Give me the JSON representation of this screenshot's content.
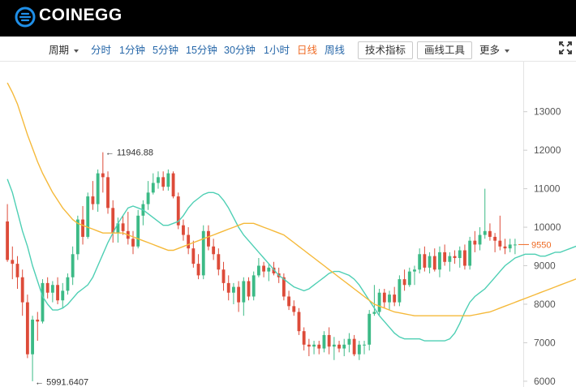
{
  "brand": {
    "name": "COINEGG",
    "logo_icon": "coinegg-logo-icon",
    "color": "#1f8fe8"
  },
  "toolbar": {
    "period_label": "周期",
    "intervals": [
      "分时",
      "1分钟",
      "5分钟",
      "15分钟",
      "30分钟",
      "1小时",
      "日线",
      "周线"
    ],
    "active_interval": "日线",
    "indicators_label": "技术指标",
    "drawing_tools_label": "画线工具",
    "more_label": "更多",
    "fullscreen_icon": "fullscreen-icon"
  },
  "colors": {
    "up": "#3cba86",
    "down": "#dd4b39",
    "ma_short": "#4ecfb4",
    "ma_long": "#f5b93a",
    "price_tag": "#ef6a23",
    "link": "#2566a8"
  },
  "chart_data": {
    "type": "candlestick",
    "ylim": [
      5850,
      14300
    ],
    "yticks": [
      6000,
      7000,
      8000,
      9000,
      10000,
      11000,
      12000,
      13000
    ],
    "annotations": [
      {
        "text": "← 11946.88",
        "value": 11946.88
      },
      {
        "text": "← 5991.6407",
        "value": 5991.6407
      }
    ],
    "last_price_label": "9550",
    "last_price": 9550,
    "series": [
      {
        "name": "",
        "color": "#4ecfb4",
        "values": [
          11250,
          10900,
          10400,
          9900,
          9500,
          9000,
          8600,
          8200,
          8000,
          7850,
          7850,
          7900,
          8000,
          8150,
          8300,
          8400,
          8500,
          8700,
          9000,
          9300,
          9600,
          9850,
          10100,
          10300,
          10500,
          10550,
          10500,
          10450,
          10350,
          10250,
          10150,
          10050,
          10050,
          10100,
          10150,
          10300,
          10500,
          10650,
          10750,
          10850,
          10900,
          10900,
          10850,
          10700,
          10500,
          10250,
          10000,
          9800,
          9650,
          9500,
          9350,
          9200,
          9050,
          8900,
          8750,
          8650,
          8550,
          8450,
          8400,
          8350,
          8400,
          8500,
          8600,
          8700,
          8800,
          8850,
          8850,
          8800,
          8750,
          8650,
          8500,
          8300,
          8100,
          7900,
          7700,
          7550,
          7400,
          7250,
          7150,
          7100,
          7100,
          7100,
          7100,
          7050,
          7050,
          7050,
          7050,
          7050,
          7100,
          7250,
          7500,
          7800,
          8050,
          8200,
          8300,
          8400,
          8550,
          8700,
          8850,
          9000,
          9100,
          9200,
          9250,
          9300,
          9300,
          9300,
          9250,
          9250,
          9300,
          9350,
          9350,
          9400,
          9450,
          9500,
          9550,
          9650,
          9700,
          9700,
          9650,
          9600
        ]
      },
      {
        "name": "",
        "color": "#f5b93a",
        "values": [
          13750,
          13500,
          13200,
          12800,
          12400,
          12050,
          11700,
          11400,
          11150,
          10900,
          10700,
          10500,
          10350,
          10200,
          10100,
          10050,
          10000,
          9950,
          9900,
          9850,
          9850,
          9850,
          9850,
          9850,
          9800,
          9750,
          9700,
          9650,
          9600,
          9550,
          9500,
          9450,
          9400,
          9400,
          9450,
          9500,
          9550,
          9600,
          9650,
          9700,
          9750,
          9800,
          9850,
          9900,
          9950,
          10000,
          10050,
          10100,
          10100,
          10100,
          10050,
          10000,
          9950,
          9900,
          9850,
          9800,
          9700,
          9600,
          9500,
          9400,
          9300,
          9200,
          9100,
          9000,
          8900,
          8800,
          8700,
          8600,
          8500,
          8400,
          8300,
          8200,
          8100,
          8000,
          7950,
          7900,
          7850,
          7800,
          7775,
          7750,
          7725,
          7700,
          7700,
          7700,
          7700,
          7700,
          7700,
          7700,
          7700,
          7700,
          7700,
          7700,
          7700,
          7725,
          7750,
          7775,
          7800,
          7850,
          7900,
          7950,
          8000,
          8050,
          8100,
          8150,
          8200,
          8250,
          8300,
          8350,
          8400,
          8450,
          8500,
          8550,
          8600,
          8650,
          8700,
          8750,
          8800,
          8850,
          8900,
          9000
        ]
      }
    ],
    "candles": [
      [
        10150,
        10600,
        9100,
        9150
      ],
      [
        9150,
        9500,
        8650,
        9050
      ],
      [
        9050,
        9250,
        8400,
        8700
      ],
      [
        8700,
        8900,
        7700,
        8050
      ],
      [
        8050,
        8250,
        6600,
        6700
      ],
      [
        6700,
        7700,
        6000,
        7600
      ],
      [
        7600,
        7800,
        7050,
        7550
      ],
      [
        7550,
        8650,
        7500,
        8550
      ],
      [
        8550,
        8700,
        8150,
        8300
      ],
      [
        8300,
        8600,
        8050,
        8500
      ],
      [
        8500,
        8700,
        8000,
        8100
      ],
      [
        8100,
        8550,
        7900,
        8350
      ],
      [
        8350,
        8800,
        8250,
        8700
      ],
      [
        8700,
        9500,
        8500,
        9300
      ],
      [
        9300,
        10300,
        9150,
        10200
      ],
      [
        10200,
        10550,
        9550,
        9750
      ],
      [
        9750,
        10900,
        9700,
        10800
      ],
      [
        10800,
        11200,
        10450,
        10600
      ],
      [
        10600,
        11500,
        10400,
        11400
      ],
      [
        11400,
        11946.88,
        10900,
        11300
      ],
      [
        11300,
        11450,
        10350,
        10500
      ],
      [
        10500,
        10700,
        9600,
        9850
      ],
      [
        9850,
        10250,
        9600,
        10100
      ],
      [
        10100,
        10300,
        9800,
        9900
      ],
      [
        9900,
        10400,
        9550,
        9700
      ],
      [
        9700,
        9900,
        9300,
        9500
      ],
      [
        9500,
        10450,
        9450,
        10300
      ],
      [
        10300,
        10700,
        10050,
        10600
      ],
      [
        10600,
        11200,
        10450,
        10900
      ],
      [
        10900,
        11400,
        10850,
        11150
      ],
      [
        11150,
        11450,
        11000,
        11300
      ],
      [
        11300,
        11450,
        10950,
        11050
      ],
      [
        11050,
        11500,
        10950,
        11400
      ],
      [
        11400,
        11450,
        10750,
        10800
      ],
      [
        10800,
        10900,
        9950,
        10050
      ],
      [
        10050,
        10200,
        9650,
        9800
      ],
      [
        9800,
        10000,
        9300,
        9450
      ],
      [
        9450,
        9650,
        8950,
        9050
      ],
      [
        9050,
        9300,
        8650,
        8750
      ],
      [
        8750,
        10050,
        8650,
        9900
      ],
      [
        9900,
        10050,
        9400,
        9500
      ],
      [
        9500,
        9700,
        9150,
        9300
      ],
      [
        9300,
        9450,
        8750,
        8900
      ],
      [
        8900,
        9100,
        8350,
        8550
      ],
      [
        8550,
        8750,
        8100,
        8300
      ],
      [
        8300,
        8550,
        8000,
        8450
      ],
      [
        8450,
        8600,
        7800,
        8050
      ],
      [
        8050,
        8700,
        7700,
        8600
      ],
      [
        8600,
        8700,
        8100,
        8200
      ],
      [
        8200,
        8850,
        8100,
        8750
      ],
      [
        8750,
        9200,
        8700,
        9000
      ],
      [
        9000,
        9100,
        8700,
        8850
      ],
      [
        8850,
        9050,
        8600,
        8950
      ],
      [
        8950,
        9100,
        8750,
        8800
      ],
      [
        8800,
        8950,
        8550,
        8700
      ],
      [
        8700,
        8800,
        8100,
        8200
      ],
      [
        8200,
        8350,
        7850,
        7950
      ],
      [
        7950,
        8100,
        7700,
        7800
      ],
      [
        7800,
        7900,
        7200,
        7300
      ],
      [
        7300,
        7400,
        6800,
        6950
      ],
      [
        6950,
        7100,
        6650,
        6900
      ],
      [
        6900,
        7050,
        6700,
        6950
      ],
      [
        6950,
        7050,
        6700,
        6850
      ],
      [
        6850,
        7300,
        6750,
        7200
      ],
      [
        7200,
        7400,
        6700,
        6900
      ],
      [
        6900,
        7150,
        6550,
        6950
      ],
      [
        6950,
        7050,
        6750,
        6850
      ],
      [
        6850,
        7100,
        6650,
        6950
      ],
      [
        6950,
        7250,
        6750,
        7100
      ],
      [
        7100,
        7200,
        6650,
        6700
      ],
      [
        6700,
        7050,
        6550,
        6950
      ],
      [
        6950,
        7050,
        6700,
        6950
      ],
      [
        6950,
        7850,
        6800,
        7750
      ],
      [
        7750,
        8500,
        7700,
        7800
      ],
      [
        7800,
        8400,
        7700,
        8300
      ],
      [
        8300,
        8400,
        7900,
        8050
      ],
      [
        8050,
        8350,
        7850,
        8250
      ],
      [
        8250,
        8450,
        7950,
        8050
      ],
      [
        8050,
        8750,
        7950,
        8650
      ],
      [
        8650,
        8900,
        8350,
        8500
      ],
      [
        8500,
        8950,
        8450,
        8850
      ],
      [
        8850,
        9000,
        8500,
        8900
      ],
      [
        8900,
        9450,
        8800,
        9300
      ],
      [
        9300,
        9500,
        8850,
        8950
      ],
      [
        8950,
        9350,
        8800,
        9250
      ],
      [
        9250,
        9450,
        8850,
        8900
      ],
      [
        8900,
        9500,
        8700,
        9350
      ],
      [
        9350,
        9550,
        9000,
        9100
      ],
      [
        9100,
        9350,
        8850,
        9250
      ],
      [
        9250,
        9400,
        9050,
        9200
      ],
      [
        9200,
        9500,
        8950,
        9400
      ],
      [
        9400,
        9550,
        8900,
        9000
      ],
      [
        9000,
        9750,
        8900,
        9650
      ],
      [
        9650,
        9900,
        9350,
        9550
      ],
      [
        9550,
        10000,
        9400,
        9800
      ],
      [
        9800,
        11000,
        9700,
        9900
      ],
      [
        9900,
        10100,
        9650,
        9750
      ],
      [
        9750,
        9850,
        9350,
        9650
      ],
      [
        9650,
        10300,
        9400,
        9500
      ],
      [
        9500,
        9700,
        9300,
        9450
      ],
      [
        9450,
        9700,
        9350,
        9550
      ],
      [
        9550,
        9700,
        9300,
        9550
      ]
    ]
  }
}
